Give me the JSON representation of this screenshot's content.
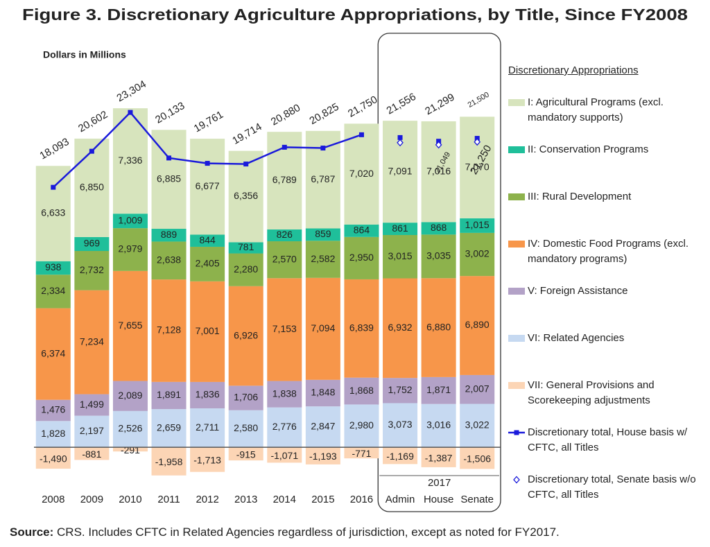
{
  "chart_data": {
    "type": "bar",
    "title": "Figure 3. Discretionary Agriculture Appropriations, by Title, Since FY2008",
    "y_label": "Dollars in Millions",
    "legend_title": "Discretionary Appropriations",
    "source": {
      "label": "Source:",
      "text": "CRS. Includes CFTC in Related Agencies regardless of jurisdiction, except as noted for FY2017."
    },
    "categories": [
      "2008",
      "2009",
      "2010",
      "2011",
      "2012",
      "2013",
      "2014",
      "2015",
      "2016",
      "Admin",
      "House",
      "Senate"
    ],
    "groups": [
      {
        "label": "2017",
        "from": 9,
        "to": 11
      }
    ],
    "ylim": [
      -2500,
      25000
    ],
    "series": [
      {
        "name": "I: Agricultural Programs (excl. mandatory supports)",
        "type": "bar",
        "color": "#d7e4bd",
        "values": [
          6633,
          6850,
          7336,
          6885,
          6677,
          6356,
          6789,
          6787,
          7020,
          7091,
          7016,
          7070
        ],
        "value_labels": [
          "6,633",
          "6,850",
          "7,336",
          "6,885",
          "6,677",
          "6,356",
          "6,789",
          "6,787",
          "7,020",
          "7,091",
          "7,016",
          "7,070"
        ]
      },
      {
        "name": "II: Conservation Programs",
        "type": "bar",
        "color": "#1fbf9a",
        "values": [
          938,
          969,
          1009,
          889,
          844,
          781,
          826,
          859,
          864,
          861,
          868,
          1015
        ],
        "value_labels": [
          "938",
          "969",
          "1,009",
          "889",
          "844",
          "781",
          "826",
          "859",
          "864",
          "861",
          "868",
          "1,015"
        ]
      },
      {
        "name": "III: Rural Development",
        "type": "bar",
        "color": "#8db24c",
        "values": [
          2334,
          2732,
          2979,
          2638,
          2405,
          2280,
          2570,
          2582,
          2950,
          3015,
          3035,
          3002
        ],
        "value_labels": [
          "2,334",
          "2,732",
          "2,979",
          "2,638",
          "2,405",
          "2,280",
          "2,570",
          "2,582",
          "2,950",
          "3,015",
          "3,035",
          "3,002"
        ]
      },
      {
        "name": "IV: Domestic Food Programs (excl. mandatory programs)",
        "type": "bar",
        "color": "#f7964a",
        "values": [
          6374,
          7234,
          7655,
          7128,
          7001,
          6926,
          7153,
          7094,
          6839,
          6932,
          6880,
          6890
        ],
        "value_labels": [
          "6,374",
          "7,234",
          "7,655",
          "7,128",
          "7,001",
          "6,926",
          "7,153",
          "7,094",
          "6,839",
          "6,932",
          "6,880",
          "6,890"
        ]
      },
      {
        "name": "V: Foreign Assistance",
        "type": "bar",
        "color": "#b3a2c7",
        "values": [
          1476,
          1499,
          2089,
          1891,
          1836,
          1706,
          1838,
          1848,
          1868,
          1752,
          1871,
          2007
        ],
        "value_labels": [
          "1,476",
          "1,499",
          "2,089",
          "1,891",
          "1,836",
          "1,706",
          "1,838",
          "1,848",
          "1,868",
          "1,752",
          "1,871",
          "2,007"
        ]
      },
      {
        "name": "VI: Related Agencies",
        "type": "bar",
        "color": "#c6d9f1",
        "values": [
          1828,
          2197,
          2526,
          2659,
          2711,
          2580,
          2776,
          2847,
          2980,
          3073,
          3016,
          3022
        ],
        "value_labels": [
          "1,828",
          "2,197",
          "2,526",
          "2,659",
          "2,711",
          "2,580",
          "2,776",
          "2,847",
          "2,980",
          "3,073",
          "3,016",
          "3,022"
        ]
      },
      {
        "name": "VII: General Provisions and Scorekeeping adjustments",
        "type": "bar",
        "color": "#fcd5b5",
        "values": [
          -1490,
          -881,
          -291,
          -1958,
          -1713,
          -915,
          -1071,
          -1193,
          -771,
          -1169,
          -1387,
          -1506
        ],
        "value_labels": [
          "-1,490",
          "-881",
          "-291",
          "-1,958",
          "-1,713",
          "-915",
          "-1,071",
          "-1,193",
          "-771",
          "-1,169",
          "-1,387",
          "-1,506"
        ]
      },
      {
        "name": "Discretionary total, House basis w/ CFTC, all Titles",
        "type": "line",
        "marker": "square",
        "color": "#1a1adb",
        "values": [
          18093,
          20602,
          23304,
          20133,
          19761,
          19714,
          20880,
          20825,
          21750,
          21556,
          21299,
          21500
        ],
        "value_labels": [
          "18,093",
          "20,602",
          "23,304",
          "20,133",
          "19,761",
          "19,714",
          "20,880",
          "20,825",
          "21,750",
          "21,556",
          "21,299",
          "21,500"
        ]
      },
      {
        "name": "Discretionary total, Senate basis w/o CFTC, all Titles",
        "type": "scatter",
        "marker": "diamond",
        "color": "#1a1adb",
        "values": [
          null,
          null,
          null,
          null,
          null,
          null,
          null,
          null,
          null,
          21200,
          21049,
          21250
        ],
        "value_labels": [
          null,
          null,
          null,
          null,
          null,
          null,
          null,
          null,
          null,
          null,
          "21,049",
          "21,250"
        ]
      }
    ]
  }
}
